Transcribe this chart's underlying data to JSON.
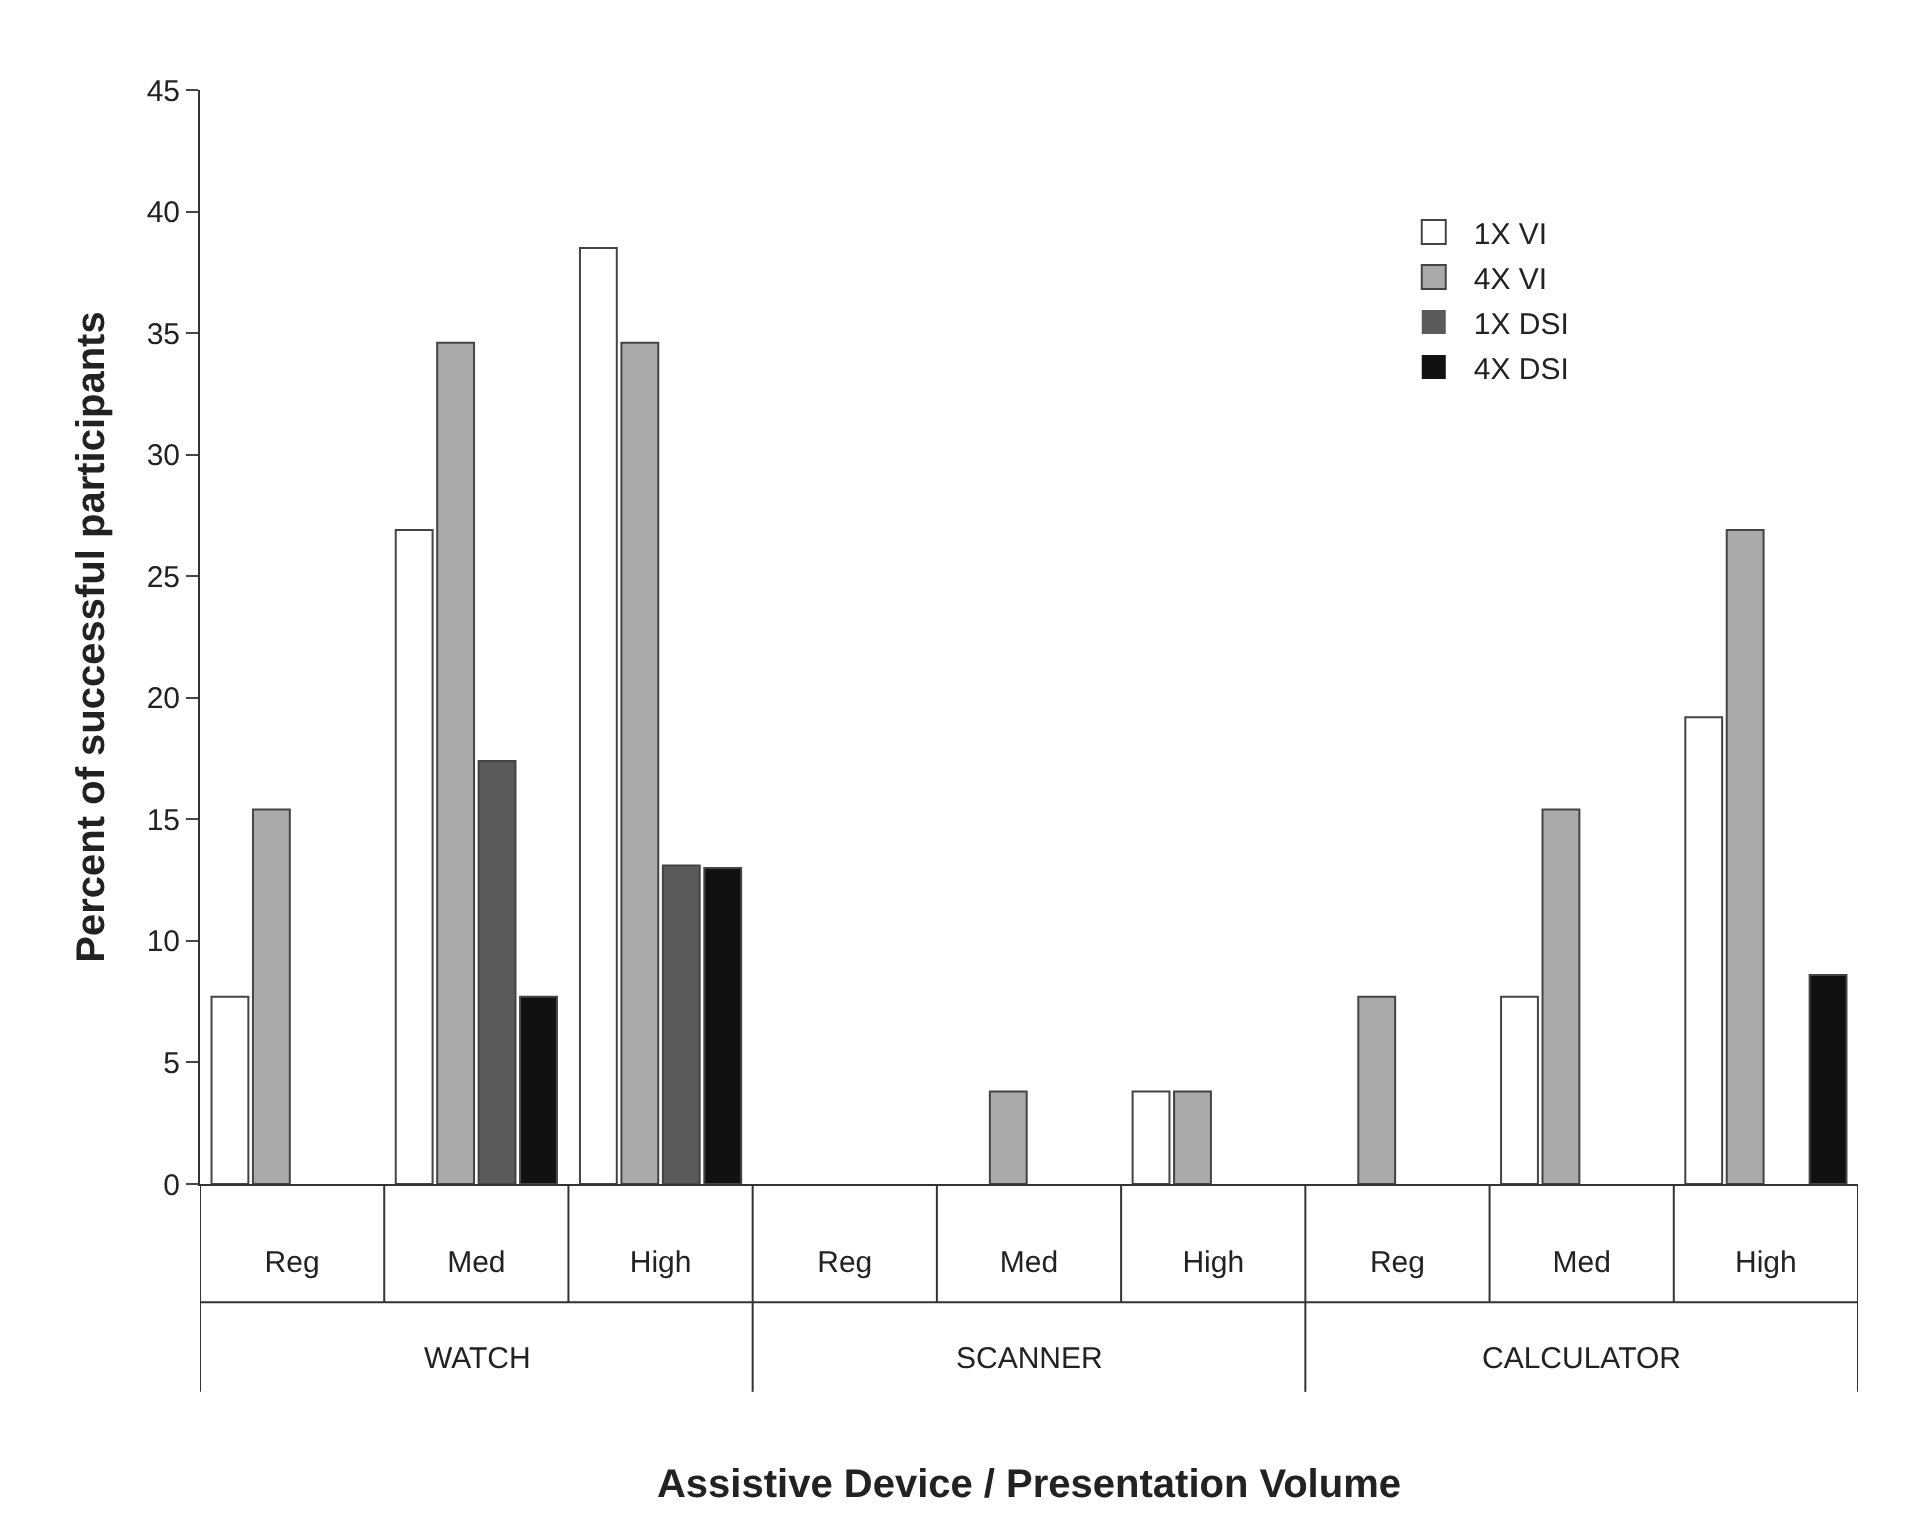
{
  "chart_data": {
    "type": "bar",
    "xlabel": "Assistive Device / Presentation Volume",
    "ylabel": "Percent of successful participants",
    "categories": [
      "Reg",
      "Med",
      "High",
      "Reg",
      "Med",
      "High",
      "Reg",
      "Med",
      "High"
    ],
    "annotations": [
      "WATCH",
      "SCANNER",
      "CALCULATOR"
    ],
    "series": [
      {
        "name": "1X VI",
        "color": "#ffffff",
        "values": [
          7.7,
          26.9,
          38.5,
          0,
          0,
          3.8,
          0,
          7.7,
          19.2
        ]
      },
      {
        "name": "4X VI",
        "color": "#aaaaaa",
        "values": [
          15.4,
          34.6,
          34.6,
          0,
          3.8,
          3.8,
          7.7,
          15.4,
          26.9
        ]
      },
      {
        "name": "1X DSI",
        "color": "#5a5a5a",
        "values": [
          0,
          17.4,
          13.1,
          0,
          0,
          0,
          0,
          0,
          0
        ]
      },
      {
        "name": "4X DSI",
        "color": "#111111",
        "values": [
          0,
          7.7,
          13.0,
          0,
          0,
          0,
          0,
          0,
          8.6
        ]
      }
    ],
    "ylim": [
      0,
      45
    ],
    "yticks": [
      0,
      5,
      10,
      15,
      20,
      25,
      30,
      35,
      40,
      45
    ],
    "legend": "top right"
  }
}
